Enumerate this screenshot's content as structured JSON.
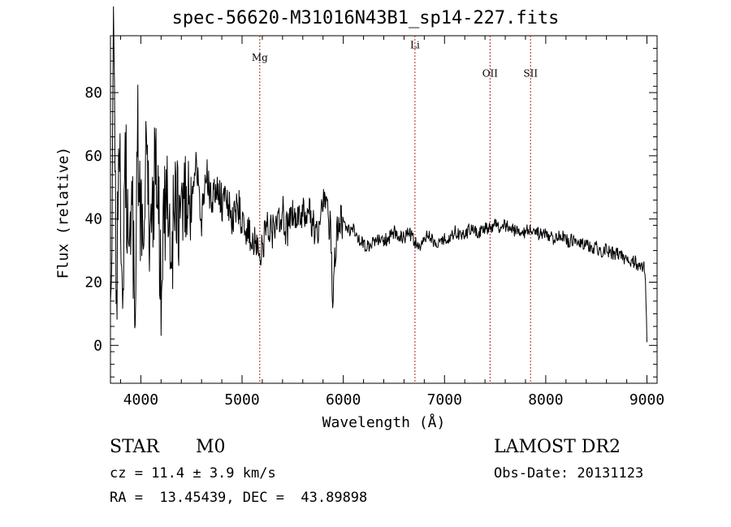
{
  "chart_data": {
    "type": "line",
    "title": "spec-56620-M31016N43B1_sp14-227.fits",
    "xlabel": "Wavelength (Å)",
    "ylabel": "Flux (relative)",
    "xlim": [
      3700,
      9100
    ],
    "ylim": [
      -12,
      98
    ],
    "x_ticks": [
      4000,
      5000,
      6000,
      7000,
      8000,
      9000
    ],
    "y_ticks": [
      0,
      20,
      40,
      60,
      80
    ],
    "grid": false,
    "line_color": "#000000",
    "marker_color": "#b22222",
    "lines": [
      {
        "label": "Mg",
        "x": 5175,
        "label_y": 90
      },
      {
        "label": "Li",
        "x": 6708,
        "label_y": 94
      },
      {
        "label": "OII",
        "x": 7450,
        "label_y": 85
      },
      {
        "label": "SII",
        "x": 7850,
        "label_y": 85
      }
    ],
    "series": [
      {
        "x": [
          3700,
          3730,
          3760,
          3790,
          3820,
          3850,
          3880,
          3910,
          3940,
          3970,
          4000,
          4050,
          4100,
          4150,
          4200,
          4250,
          4300,
          4350,
          4400,
          4450,
          4500,
          4550,
          4600,
          4650,
          4700,
          4750,
          4800,
          4850,
          4900,
          4950,
          5000,
          5050,
          5100,
          5150,
          5175,
          5200,
          5250,
          5300,
          5350,
          5400,
          5450,
          5500,
          5550,
          5600,
          5650,
          5700,
          5750,
          5800,
          5850,
          5880,
          5895,
          5910,
          5950,
          6000,
          6050,
          6100,
          6150,
          6200,
          6250,
          6300,
          6350,
          6400,
          6450,
          6500,
          6550,
          6600,
          6650,
          6700,
          6750,
          6800,
          6850,
          6900,
          6950,
          7000,
          7050,
          7100,
          7150,
          7200,
          7250,
          7300,
          7350,
          7400,
          7450,
          7500,
          7550,
          7600,
          7650,
          7700,
          7750,
          7800,
          7850,
          7900,
          7950,
          8000,
          8050,
          8100,
          8150,
          8200,
          8250,
          8300,
          8350,
          8400,
          8450,
          8500,
          8550,
          8600,
          8650,
          8700,
          8750,
          8800,
          8850,
          8900,
          8950,
          8980,
          9000
        ],
        "y": [
          5,
          92,
          15,
          70,
          10,
          60,
          20,
          55,
          5,
          65,
          40,
          55,
          35,
          62,
          18,
          50,
          30,
          45,
          38,
          50,
          42,
          58,
          40,
          54,
          44,
          52,
          45,
          48,
          38,
          46,
          40,
          36,
          34,
          30,
          26,
          32,
          38,
          36,
          40,
          42,
          35,
          44,
          38,
          41,
          43,
          38,
          36,
          44,
          40,
          35,
          14,
          26,
          38,
          39,
          36,
          37,
          33,
          32,
          31,
          33,
          34,
          33,
          34,
          36,
          35,
          34,
          36,
          33,
          31,
          34,
          35,
          33,
          33,
          34,
          34,
          36,
          35,
          35,
          37,
          36,
          36,
          37,
          37,
          38,
          37,
          38,
          37,
          36,
          36,
          36,
          37,
          36,
          35,
          35,
          34,
          34,
          35,
          33,
          33,
          34,
          33,
          32,
          31,
          31,
          30,
          30,
          29,
          29,
          28,
          27,
          27,
          26,
          25,
          24,
          1
        ]
      }
    ]
  },
  "annotations": {
    "class_label": "STAR",
    "subclass_label": "M0",
    "survey_label": "LAMOST DR2",
    "cz_text": "cz = 11.4 ± 3.9 km/s",
    "obs_date_text": "Obs-Date: 20131123",
    "coords_text": "RA =  13.45439, DEC =  43.89898"
  }
}
